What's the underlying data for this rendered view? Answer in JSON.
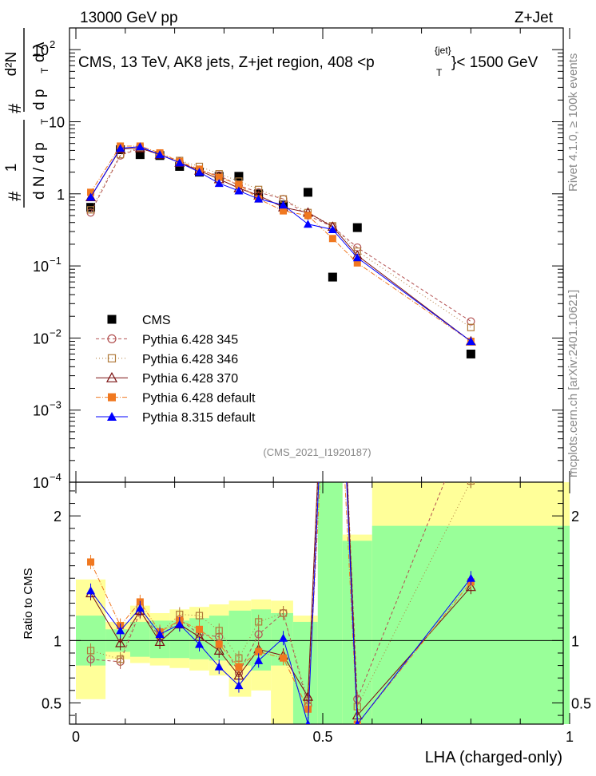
{
  "header": {
    "left": "13000 GeV pp",
    "right": "Z+Jet"
  },
  "side_text": {
    "rivet": "Rivet 4.1.0, ≥ 100k events",
    "mcplots": "mcplots.cern.ch [arXiv:2401.10621]"
  },
  "chart_data": {
    "type": "scatter",
    "title": {
      "prefix": "CMS, 13 TeV, AK8 jets, Z+jet region, 408 <p",
      "sup": "{jet}",
      "sub": "T",
      "suffix": "}< 1500 GeV"
    },
    "analysis_id": "(CMS_2021_I1920187)",
    "xlabel": "LHA (charged-only)",
    "ylabel": {
      "line1": "#",
      "line1_num": "1",
      "line1_den": "d N / d p",
      "line1_den_sub": "T",
      "line2_num": "d²N",
      "line2_den": "d p",
      "line2_den_sub": "T",
      "line2_den_tail": "d λ"
    },
    "ratio_ylabel": "Ratio to CMS",
    "xlim": [
      0,
      1
    ],
    "ylim": [
      0.0001,
      200
    ],
    "ratio_ylim": [
      0.33,
      2.27
    ],
    "x_ticks": [
      "0",
      "0.5",
      "1"
    ],
    "x_tick_values": [
      0,
      0.5,
      1
    ],
    "y_tick_labels": [
      {
        "value": 0.0001,
        "base": "10",
        "exp": "−4"
      },
      {
        "value": 0.001,
        "base": "10",
        "exp": "−3"
      },
      {
        "value": 0.01,
        "base": "10",
        "exp": "−2"
      },
      {
        "value": 0.1,
        "base": "10",
        "exp": "−1"
      },
      {
        "value": 1,
        "base": "1",
        "exp": ""
      },
      {
        "value": 10,
        "base": "10",
        "exp": ""
      },
      {
        "value": 100,
        "base": "10",
        "exp": "2"
      }
    ],
    "ratio_ticks": [
      "0.5",
      "1",
      "2"
    ],
    "ratio_tick_values": [
      0.5,
      1,
      2
    ],
    "bins": [
      {
        "lo": 0.0,
        "hi": 0.06,
        "x": 0.03,
        "cms": 0.65,
        "band1": [
          0.8,
          1.2
        ],
        "band2": [
          0.53,
          1.49
        ]
      },
      {
        "lo": 0.06,
        "hi": 0.11,
        "x": 0.09,
        "cms": 4.1,
        "band1": [
          0.91,
          1.09
        ],
        "band2": [
          0.85,
          1.15
        ]
      },
      {
        "lo": 0.11,
        "hi": 0.15,
        "x": 0.13,
        "cms": 3.5,
        "band1": [
          0.87,
          1.15
        ],
        "band2": [
          0.82,
          1.28
        ]
      },
      {
        "lo": 0.15,
        "hi": 0.19,
        "x": 0.17,
        "cms": 3.4,
        "band1": [
          0.86,
          1.16
        ],
        "band2": [
          0.8,
          1.22
        ]
      },
      {
        "lo": 0.19,
        "hi": 0.23,
        "x": 0.21,
        "cms": 2.4,
        "band1": [
          0.86,
          1.16
        ],
        "band2": [
          0.78,
          1.25
        ]
      },
      {
        "lo": 0.23,
        "hi": 0.27,
        "x": 0.25,
        "cms": 2.0,
        "band1": [
          0.85,
          1.18
        ],
        "band2": [
          0.76,
          1.27
        ]
      },
      {
        "lo": 0.27,
        "hi": 0.31,
        "x": 0.29,
        "cms": 1.75,
        "band1": [
          0.84,
          1.2
        ],
        "band2": [
          0.72,
          1.29
        ]
      },
      {
        "lo": 0.31,
        "hi": 0.355,
        "x": 0.33,
        "cms": 1.75,
        "band1": [
          0.8,
          1.24
        ],
        "band2": [
          0.55,
          1.32
        ]
      },
      {
        "lo": 0.355,
        "hi": 0.395,
        "x": 0.37,
        "cms": 1.0,
        "band1": [
          0.76,
          1.25
        ],
        "band2": [
          0.6,
          1.33
        ]
      },
      {
        "lo": 0.395,
        "hi": 0.44,
        "x": 0.42,
        "cms": 0.7,
        "band1": [
          0.8,
          1.22
        ],
        "band2": [
          0.33,
          1.32
        ]
      },
      {
        "lo": 0.44,
        "hi": 0.49,
        "x": 0.47,
        "cms": 1.05,
        "band1": [
          0.33,
          1.15
        ],
        "band2": [
          0.33,
          1.2
        ]
      },
      {
        "lo": 0.49,
        "hi": 0.54,
        "x": 0.52,
        "cms": 0.07,
        "band1": [
          0.33,
          2.27
        ],
        "band2": [
          0.33,
          2.27
        ]
      },
      {
        "lo": 0.54,
        "hi": 0.6,
        "x": 0.57,
        "cms": 0.34,
        "band1": [
          0.33,
          1.8
        ],
        "band2": [
          0.33,
          1.85
        ]
      },
      {
        "lo": 0.6,
        "hi": 1.0,
        "x": 0.8,
        "cms": 0.006,
        "band1": [
          0.33,
          1.92
        ],
        "band2": [
          0.33,
          2.27
        ]
      }
    ],
    "series": [
      {
        "name": "CMS",
        "color": "#000000",
        "marker": "square-filled",
        "dash": "none",
        "x": [
          0.03,
          0.09,
          0.13,
          0.17,
          0.21,
          0.25,
          0.29,
          0.33,
          0.37,
          0.42,
          0.47,
          0.52,
          0.57,
          0.8
        ],
        "values": [
          0.65,
          4.1,
          3.5,
          3.4,
          2.4,
          2.0,
          1.75,
          1.75,
          1.0,
          0.7,
          1.05,
          0.07,
          0.34,
          0.006
        ]
      },
      {
        "name": "Pythia 6.428 345",
        "color": "#b25050",
        "marker": "circle-open",
        "dash": "4,3",
        "x": [
          0.03,
          0.09,
          0.13,
          0.17,
          0.21,
          0.25,
          0.29,
          0.33,
          0.37,
          0.42,
          0.47,
          0.52,
          0.57,
          0.8
        ],
        "values": [
          0.55,
          3.4,
          4.3,
          3.5,
          2.8,
          2.1,
          1.8,
          1.3,
          1.05,
          0.85,
          0.5,
          0.35,
          0.18,
          0.017
        ],
        "ratio": [
          0.85,
          0.83,
          1.23,
          1.03,
          1.17,
          1.05,
          1.03,
          0.74,
          1.05,
          1.22,
          0.48,
          4.9,
          0.53,
          2.8
        ]
      },
      {
        "name": "Pythia 6.428 346",
        "color": "#b07a3a",
        "marker": "square-open",
        "dash": "1,3",
        "x": [
          0.03,
          0.09,
          0.13,
          0.17,
          0.21,
          0.25,
          0.29,
          0.33,
          0.37,
          0.42,
          0.47,
          0.52,
          0.57,
          0.8
        ],
        "values": [
          0.6,
          3.5,
          4.4,
          3.6,
          2.9,
          2.4,
          1.9,
          1.5,
          1.15,
          0.85,
          0.55,
          0.36,
          0.16,
          0.014
        ],
        "ratio": [
          0.92,
          0.85,
          1.26,
          1.06,
          1.21,
          1.2,
          1.08,
          0.86,
          1.15,
          1.22,
          0.52,
          5.1,
          0.47,
          2.28
        ]
      },
      {
        "name": "Pythia 6.428 370",
        "color": "#7a1010",
        "marker": "triangle-open",
        "dash": "none",
        "x": [
          0.03,
          0.09,
          0.13,
          0.17,
          0.21,
          0.25,
          0.29,
          0.33,
          0.37,
          0.42,
          0.47,
          0.52,
          0.57,
          0.8
        ],
        "values": [
          0.9,
          4.2,
          4.3,
          3.5,
          2.7,
          2.1,
          1.6,
          1.2,
          0.95,
          0.65,
          0.55,
          0.35,
          0.14,
          0.009
        ],
        "ratio": [
          1.38,
          0.98,
          1.24,
          0.99,
          1.13,
          1.03,
          0.92,
          0.72,
          0.93,
          0.88,
          0.55,
          5.0,
          0.4,
          1.43
        ]
      },
      {
        "name": "Pythia 6.428 default",
        "color": "#f07820",
        "marker": "square-filled",
        "dash": "6,2,1,2",
        "x": [
          0.03,
          0.09,
          0.13,
          0.17,
          0.21,
          0.25,
          0.29,
          0.33,
          0.37,
          0.42,
          0.47,
          0.52,
          0.57,
          0.8
        ],
        "values": [
          1.05,
          4.6,
          4.6,
          3.7,
          2.8,
          2.2,
          1.7,
          1.35,
          0.85,
          0.58,
          0.5,
          0.24,
          0.11,
          0.009
        ],
        "ratio": [
          1.63,
          1.12,
          1.31,
          1.07,
          1.16,
          1.09,
          0.97,
          0.79,
          0.91,
          0.86,
          0.45,
          4.2,
          0.33,
          1.47
        ]
      },
      {
        "name": "Pythia 8.315 default",
        "color": "#0000ff",
        "marker": "triangle-filled",
        "dash": "none",
        "x": [
          0.03,
          0.09,
          0.13,
          0.17,
          0.21,
          0.25,
          0.29,
          0.33,
          0.37,
          0.42,
          0.47,
          0.52,
          0.57,
          0.8
        ],
        "values": [
          0.9,
          4.3,
          4.5,
          3.5,
          2.7,
          2.0,
          1.4,
          1.1,
          0.85,
          0.7,
          0.38,
          0.32,
          0.13,
          0.009
        ],
        "ratio": [
          1.4,
          1.08,
          1.26,
          1.05,
          1.13,
          0.97,
          0.79,
          0.64,
          0.84,
          1.02,
          0.33,
          4.8,
          0.33,
          1.5
        ]
      }
    ]
  }
}
